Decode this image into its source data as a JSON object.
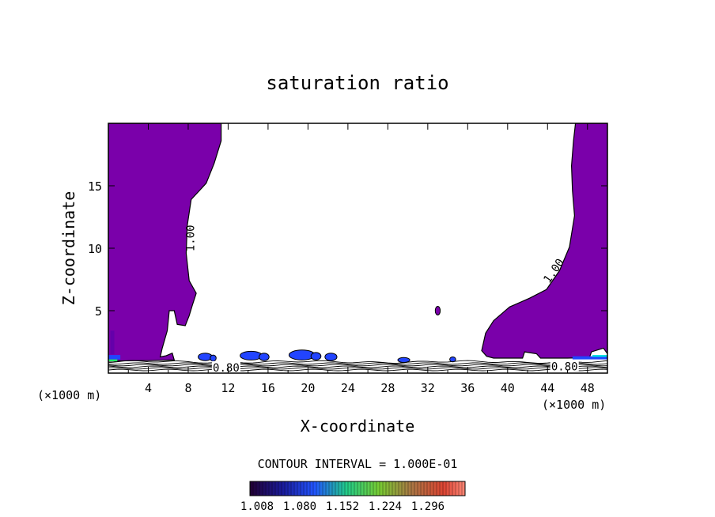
{
  "chart_data": {
    "type": "contour",
    "title": "saturation ratio",
    "xlabel": "X-coordinate",
    "ylabel": "Z-coordinate",
    "xunit": "(×1000 m)",
    "xlim": [
      0,
      50
    ],
    "ylim": [
      0,
      20
    ],
    "xticks": [
      4,
      8,
      12,
      16,
      20,
      24,
      28,
      32,
      36,
      40,
      44,
      48
    ],
    "yticks": [
      5,
      10,
      15
    ],
    "contour_labels": [
      {
        "text": "1.00",
        "x": 8.2,
        "z": 10.8,
        "rotate": -90
      },
      {
        "text": "1.00",
        "x": 44.6,
        "z": 8.2,
        "rotate": -55
      },
      {
        "text": "0.80",
        "x": 11.8,
        "z": 0.45,
        "rotate": 0
      },
      {
        "text": "0.80",
        "x": 45.7,
        "z": 0.55,
        "rotate": 0
      }
    ],
    "interval_text": "CONTOUR INTERVAL = 1.000E-01",
    "colorbar_labels": [
      "1.008",
      "1.080",
      "1.152",
      "1.224",
      "1.296"
    ],
    "colors": {
      "fill_main": "#7a00aa",
      "fill_dark": "#5500aa",
      "blue": "#2244ff",
      "cyan": "#00dddd",
      "green": "#22ee66"
    },
    "regions": {
      "left": [
        [
          0,
          20
        ],
        [
          11.3,
          20
        ],
        [
          11.3,
          18.6
        ],
        [
          10.6,
          16.8
        ],
        [
          9.8,
          15.2
        ],
        [
          8.3,
          13.9
        ],
        [
          7.9,
          11.8
        ],
        [
          7.8,
          9.6
        ],
        [
          8.1,
          7.4
        ],
        [
          8.8,
          6.4
        ],
        [
          8.4,
          5.4
        ],
        [
          8.1,
          4.6
        ],
        [
          7.7,
          3.8
        ],
        [
          6.9,
          3.9
        ],
        [
          6.6,
          5.0
        ],
        [
          6.1,
          5.0
        ],
        [
          5.9,
          3.4
        ],
        [
          5.4,
          2.0
        ],
        [
          5.2,
          1.3
        ],
        [
          5.8,
          1.4
        ],
        [
          6.4,
          1.6
        ],
        [
          6.6,
          1.05
        ],
        [
          4.0,
          1.0
        ],
        [
          2.5,
          1.0
        ],
        [
          0,
          0.95
        ]
      ],
      "right": [
        [
          46.8,
          20
        ],
        [
          50,
          20
        ],
        [
          50,
          1.55
        ],
        [
          49.6,
          2.0
        ],
        [
          48.4,
          1.7
        ],
        [
          48.2,
          1.25
        ],
        [
          46.0,
          1.2
        ],
        [
          43.3,
          1.2
        ],
        [
          42.9,
          1.55
        ],
        [
          41.7,
          1.7
        ],
        [
          41.5,
          1.2
        ],
        [
          38.6,
          1.2
        ],
        [
          37.9,
          1.35
        ],
        [
          37.4,
          1.8
        ],
        [
          37.8,
          3.2
        ],
        [
          38.6,
          4.2
        ],
        [
          40.2,
          5.3
        ],
        [
          42.2,
          6.0
        ],
        [
          43.9,
          6.7
        ],
        [
          45.2,
          8.2
        ],
        [
          46.2,
          10.1
        ],
        [
          46.7,
          12.6
        ],
        [
          46.5,
          14.6
        ],
        [
          46.4,
          16.6
        ],
        [
          46.6,
          18.6
        ]
      ],
      "blobs": [
        [
          33.0,
          5.0,
          0.25,
          0.35
        ],
        [
          9.7,
          1.3,
          0.7,
          0.3
        ],
        [
          10.5,
          1.2,
          0.3,
          0.25
        ],
        [
          14.3,
          1.4,
          1.1,
          0.35
        ],
        [
          15.6,
          1.3,
          0.5,
          0.3
        ],
        [
          19.4,
          1.45,
          1.3,
          0.4
        ],
        [
          20.8,
          1.35,
          0.5,
          0.3
        ],
        [
          22.3,
          1.3,
          0.6,
          0.3
        ],
        [
          29.6,
          1.05,
          0.6,
          0.2
        ],
        [
          34.5,
          1.1,
          0.3,
          0.2
        ]
      ]
    }
  }
}
